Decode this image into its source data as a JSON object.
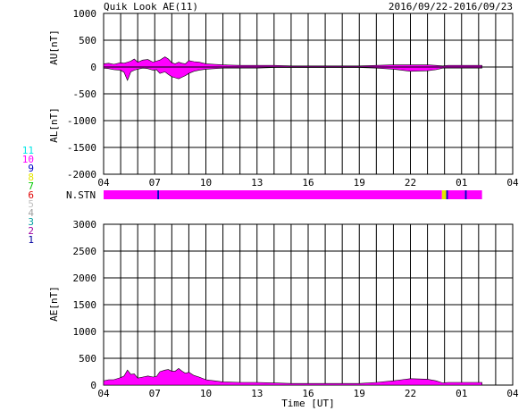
{
  "header": {
    "title": "Quik Look AE(11)",
    "date_range": "2016/09/22-2016/09/23"
  },
  "stations": {
    "label": "N.STN",
    "items": [
      {
        "n": "11",
        "color": "#00e5e5"
      },
      {
        "n": "10",
        "color": "#ff00ff"
      },
      {
        "n": "9",
        "color": "#0000c8"
      },
      {
        "n": "8",
        "color": "#e5e500"
      },
      {
        "n": "7",
        "color": "#00c800"
      },
      {
        "n": "6",
        "color": "#e00000"
      },
      {
        "n": "5",
        "color": "#c0c0c0"
      },
      {
        "n": "4",
        "color": "#a0a0a0"
      },
      {
        "n": "3",
        "color": "#00a0a0"
      },
      {
        "n": "2",
        "color": "#a000a0"
      },
      {
        "n": "1",
        "color": "#0000a0"
      }
    ],
    "bar_segments": [
      {
        "from": 4.0,
        "to": 7.15,
        "n": "10"
      },
      {
        "from": 7.15,
        "to": 7.25,
        "n": "9"
      },
      {
        "from": 7.25,
        "to": 23.85,
        "n": "10"
      },
      {
        "from": 23.85,
        "to": 24.1,
        "n": "8"
      },
      {
        "from": 24.1,
        "to": 24.2,
        "n": "9"
      },
      {
        "from": 24.2,
        "to": 25.2,
        "n": "10"
      },
      {
        "from": 25.2,
        "to": 25.3,
        "n": "9"
      },
      {
        "from": 25.3,
        "to": 26.2,
        "n": "10"
      }
    ]
  },
  "chart_data": [
    {
      "type": "area",
      "ylabel_top": "AU[nT]",
      "ylabel_bottom": "AL[nT]",
      "ylim": [
        -2000,
        1000
      ],
      "yticks": [
        "1000",
        "500",
        "0",
        "-500",
        "-1000",
        "-1500",
        "-2000"
      ],
      "xlim": [
        4,
        28
      ],
      "xticks": [
        "04",
        "07",
        "10",
        "13",
        "16",
        "19",
        "22",
        "01",
        "04"
      ],
      "fill_color": "#ff00ff",
      "series": [
        {
          "x": [
            4.0,
            4.3,
            4.6,
            5.0,
            5.2,
            5.4,
            5.6,
            5.8,
            6.0,
            6.3,
            6.6,
            6.9,
            7.1,
            7.3,
            7.6,
            7.8,
            8.0,
            8.2,
            8.4,
            8.6,
            8.8,
            9.0,
            9.3,
            9.6,
            10.0,
            10.5,
            11.0,
            12.0,
            13.0,
            14.0,
            15.0,
            16.0,
            17.0,
            18.0,
            19.0,
            20.0,
            21.0,
            21.5,
            22.0,
            23.0,
            23.5,
            23.9,
            24.2,
            25.0,
            26.0,
            26.2
          ],
          "values": [
            60,
            70,
            50,
            80,
            70,
            90,
            110,
            150,
            90,
            130,
            140,
            90,
            110,
            130,
            190,
            150,
            80,
            60,
            90,
            70,
            60,
            120,
            100,
            90,
            60,
            50,
            40,
            30,
            30,
            30,
            20,
            20,
            20,
            20,
            20,
            30,
            40,
            40,
            40,
            40,
            30,
            20,
            30,
            30,
            30,
            30
          ]
        },
        {
          "x": [
            4.0,
            4.3,
            4.6,
            5.0,
            5.2,
            5.4,
            5.6,
            5.8,
            6.0,
            6.3,
            6.6,
            6.9,
            7.1,
            7.3,
            7.6,
            7.8,
            8.0,
            8.2,
            8.4,
            8.6,
            8.8,
            9.0,
            9.3,
            9.6,
            10.0,
            10.5,
            11.0,
            12.0,
            13.0,
            14.0,
            15.0,
            16.0,
            17.0,
            18.0,
            19.0,
            20.0,
            21.0,
            21.5,
            22.0,
            23.0,
            23.5,
            23.9,
            24.2,
            25.0,
            26.0,
            26.2
          ],
          "values": [
            -20,
            -30,
            -50,
            -60,
            -100,
            -250,
            -90,
            -60,
            -40,
            -20,
            -30,
            -60,
            -50,
            -120,
            -90,
            -140,
            -180,
            -200,
            -220,
            -190,
            -160,
            -120,
            -80,
            -60,
            -40,
            -30,
            -20,
            -20,
            -20,
            -10,
            -10,
            -10,
            -10,
            -10,
            -10,
            -20,
            -40,
            -60,
            -80,
            -70,
            -50,
            -20,
            -20,
            -20,
            -20,
            -20
          ]
        }
      ]
    },
    {
      "type": "area",
      "ylabel": "AE[nT]",
      "xlabel": "Time [UT]",
      "ylim": [
        0,
        3000
      ],
      "yticks": [
        "3000",
        "2500",
        "2000",
        "1500",
        "1000",
        "500",
        "0"
      ],
      "xlim": [
        4,
        28
      ],
      "xticks": [
        "04",
        "07",
        "10",
        "13",
        "16",
        "19",
        "22",
        "01",
        "04"
      ],
      "fill_color": "#ff00ff",
      "series": [
        {
          "x": [
            4.0,
            4.3,
            4.6,
            5.0,
            5.2,
            5.4,
            5.6,
            5.8,
            6.0,
            6.3,
            6.6,
            6.9,
            7.1,
            7.3,
            7.6,
            7.8,
            8.0,
            8.2,
            8.4,
            8.6,
            8.8,
            9.0,
            9.3,
            9.6,
            10.0,
            10.5,
            11.0,
            12.0,
            13.0,
            14.0,
            15.0,
            16.0,
            17.0,
            18.0,
            19.0,
            20.0,
            21.0,
            21.5,
            22.0,
            23.0,
            23.5,
            23.9,
            24.2,
            25.0,
            26.0,
            26.2
          ],
          "values": [
            80,
            100,
            100,
            140,
            170,
            280,
            200,
            210,
            130,
            150,
            170,
            150,
            160,
            250,
            280,
            290,
            260,
            260,
            310,
            260,
            220,
            240,
            180,
            150,
            100,
            80,
            60,
            50,
            50,
            40,
            30,
            30,
            30,
            30,
            30,
            50,
            80,
            100,
            120,
            110,
            80,
            40,
            50,
            50,
            50,
            50
          ]
        }
      ]
    }
  ]
}
